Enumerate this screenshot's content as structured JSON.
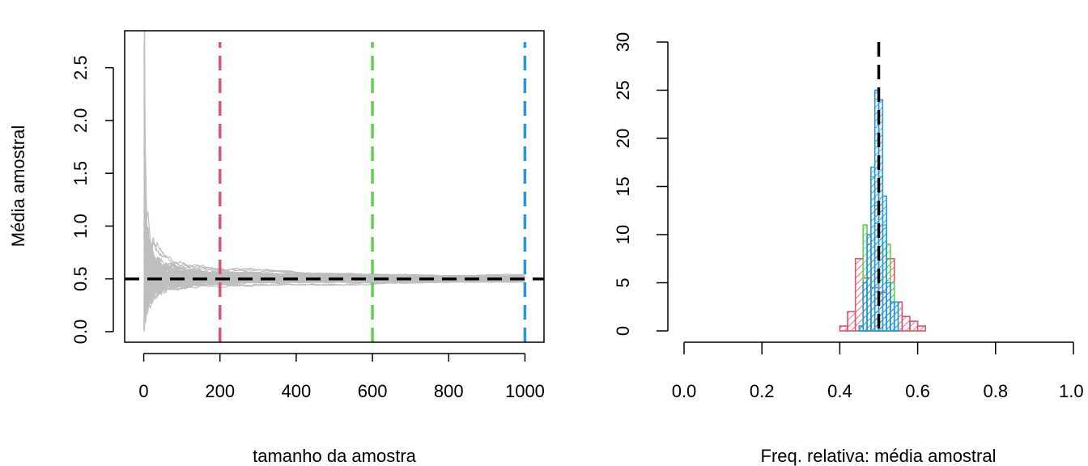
{
  "chart_data": [
    {
      "type": "line",
      "xlabel": "tamanho da amostra",
      "ylabel": "Média amostral",
      "xlim": [
        -50,
        1050
      ],
      "ylim": [
        -0.1,
        2.85
      ],
      "x_ticks": [
        0,
        200,
        400,
        600,
        800,
        1000
      ],
      "y_ticks": [
        0.0,
        0.5,
        1.0,
        1.5,
        2.0,
        2.5
      ],
      "x_tick_labels": [
        "0",
        "200",
        "400",
        "600",
        "800",
        "1000"
      ],
      "y_tick_labels": [
        "0.0",
        "0.5",
        "1.0",
        "1.5",
        "2.0",
        "2.5"
      ],
      "series_description": {
        "count": 100,
        "n_max": 1000,
        "color": "#bebebe",
        "start_max": 2.75,
        "start_min": 0.01,
        "limit": 0.5
      },
      "hlines": [
        {
          "y": 0.5,
          "color": "#000000",
          "style": "dashed"
        }
      ],
      "vlines": [
        {
          "x": 200,
          "color": "#df536b",
          "style": "dashed"
        },
        {
          "x": 600,
          "color": "#61d04f",
          "style": "dashed"
        },
        {
          "x": 1000,
          "color": "#2297e6",
          "style": "dashed"
        }
      ],
      "grid": false
    },
    {
      "type": "bar",
      "xlabel": "Freq. relativa: média amostral",
      "ylabel": "",
      "xlim": [
        0,
        1
      ],
      "ylim": [
        0,
        30
      ],
      "x_ticks": [
        0.0,
        0.2,
        0.4,
        0.6,
        0.8,
        1.0
      ],
      "y_ticks": [
        0,
        5,
        10,
        15,
        20,
        25,
        30
      ],
      "x_tick_labels": [
        "0.0",
        "0.2",
        "0.4",
        "0.6",
        "0.8",
        "1.0"
      ],
      "y_tick_labels": [
        "0",
        "5",
        "10",
        "15",
        "20",
        "25",
        "30"
      ],
      "histograms": [
        {
          "n": 200,
          "color": "#df536b",
          "fill": "hatched",
          "bins": [
            [
              0.4,
              0.42,
              0.5
            ],
            [
              0.42,
              0.44,
              2
            ],
            [
              0.44,
              0.46,
              7.5
            ],
            [
              0.46,
              0.48,
              5.5
            ],
            [
              0.48,
              0.5,
              4.5
            ],
            [
              0.5,
              0.52,
              4
            ],
            [
              0.52,
              0.54,
              7.5
            ],
            [
              0.54,
              0.56,
              3
            ],
            [
              0.56,
              0.58,
              1.5
            ],
            [
              0.58,
              0.6,
              1
            ],
            [
              0.6,
              0.62,
              0.5
            ]
          ]
        },
        {
          "n": 600,
          "color": "#61d04f",
          "fill": "hatched",
          "bins": [
            [
              0.45,
              0.46,
              0.5
            ],
            [
              0.46,
              0.47,
              11
            ],
            [
              0.47,
              0.48,
              9
            ],
            [
              0.48,
              0.49,
              16
            ],
            [
              0.49,
              0.5,
              13
            ],
            [
              0.5,
              0.51,
              16
            ],
            [
              0.51,
              0.52,
              11
            ],
            [
              0.52,
              0.53,
              9
            ],
            [
              0.53,
              0.54,
              5
            ],
            [
              0.54,
              0.55,
              3
            ]
          ]
        },
        {
          "n": 1000,
          "color": "#2297e6",
          "fill": "hatched",
          "bins": [
            [
              0.45,
              0.46,
              0.5
            ],
            [
              0.46,
              0.47,
              5
            ],
            [
              0.47,
              0.48,
              10
            ],
            [
              0.48,
              0.49,
              17
            ],
            [
              0.49,
              0.5,
              25
            ],
            [
              0.5,
              0.51,
              24
            ],
            [
              0.51,
              0.52,
              14
            ],
            [
              0.52,
              0.53,
              5
            ],
            [
              0.53,
              0.54,
              3
            ],
            [
              0.54,
              0.55,
              3
            ]
          ]
        }
      ],
      "vlines": [
        {
          "x": 0.5,
          "color": "#000000",
          "style": "dashed"
        }
      ],
      "grid": false
    }
  ]
}
